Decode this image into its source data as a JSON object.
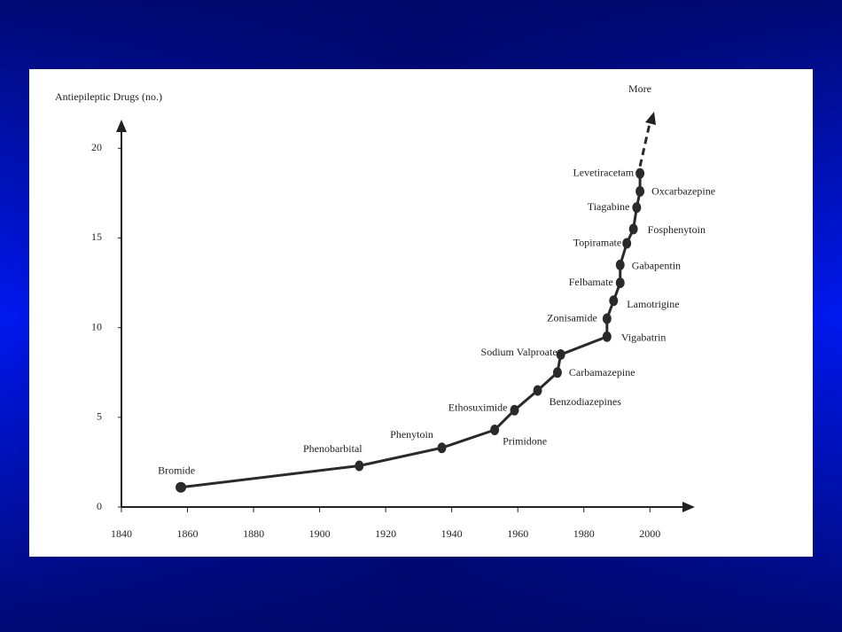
{
  "chart_data": {
    "type": "line",
    "y_label": "Antiepileptic Drugs (no.)",
    "annotation": "More",
    "x": [
      1858,
      1912,
      1937,
      1953,
      1959,
      1966,
      1972,
      1973,
      1987,
      1987,
      1989,
      1991,
      1991,
      1993,
      1995,
      1996,
      1997,
      1997
    ],
    "values": [
      1.1,
      2.3,
      3.3,
      4.3,
      5.4,
      6.5,
      7.5,
      8.5,
      9.5,
      10.5,
      11.5,
      12.5,
      13.5,
      14.7,
      15.5,
      16.7,
      17.6,
      18.6
    ],
    "point_labels": [
      "Bromide",
      "Phenobarbital",
      "Phenytoin",
      "Primidone",
      "Ethosuximide",
      "Benzodiazepines",
      "Carbamazepine",
      "Sodium Valproate",
      "Vigabatrin",
      "Zonisamide",
      "Lamotrigine",
      "Felbamate",
      "Gabapentin",
      "Topiramate",
      "Fosphenytoin",
      "Tiagabine",
      "Oxcarbazepine",
      "Levetiracetam"
    ],
    "color": "#2a2a2a",
    "xlim": [
      1840,
      2012
    ],
    "ylim": [
      0,
      21.3
    ],
    "xticks": [
      1840,
      1860,
      1880,
      1900,
      1920,
      1940,
      1960,
      1980,
      2000
    ],
    "yticks": [
      0,
      5,
      10,
      15,
      20
    ]
  }
}
